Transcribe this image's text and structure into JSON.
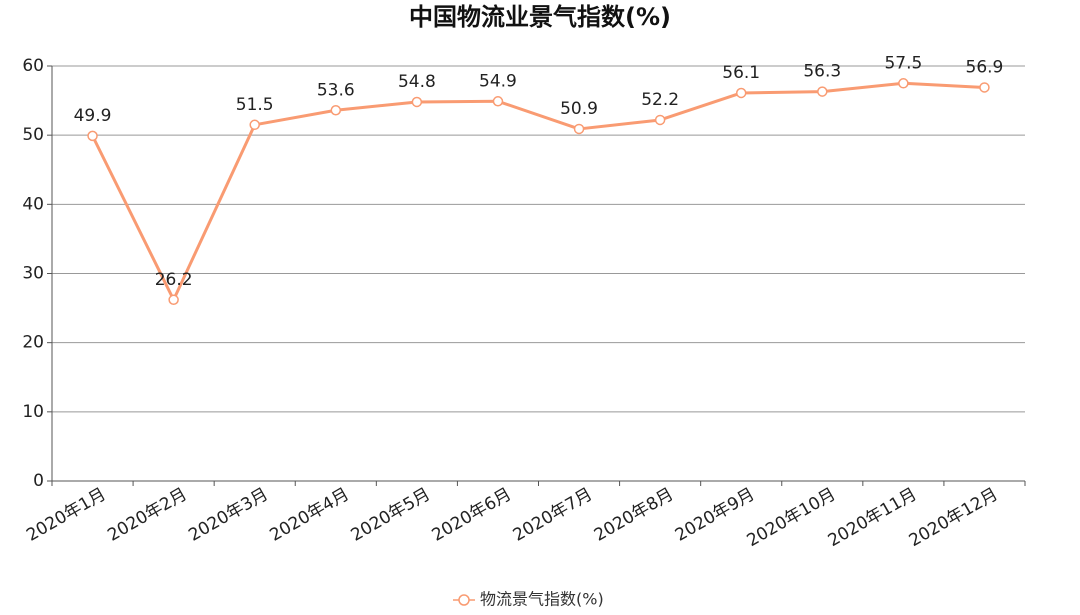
{
  "chart_data": {
    "type": "line",
    "title": "中国物流业景气指数(%)",
    "categories": [
      "2020年1月",
      "2020年2月",
      "2020年3月",
      "2020年4月",
      "2020年5月",
      "2020年6月",
      "2020年7月",
      "2020年8月",
      "2020年9月",
      "2020年10月",
      "2020年11月",
      "2020年12月"
    ],
    "series": [
      {
        "name": "物流景气指数(%)",
        "color": "#f99b72",
        "values": [
          49.9,
          26.2,
          51.5,
          53.6,
          54.8,
          54.9,
          50.9,
          52.2,
          56.1,
          56.3,
          57.5,
          56.9
        ]
      }
    ],
    "ylim": [
      0,
      60
    ],
    "yticks": [
      0,
      10,
      20,
      30,
      40,
      50,
      60
    ],
    "grid": true,
    "legend": "bottom"
  }
}
